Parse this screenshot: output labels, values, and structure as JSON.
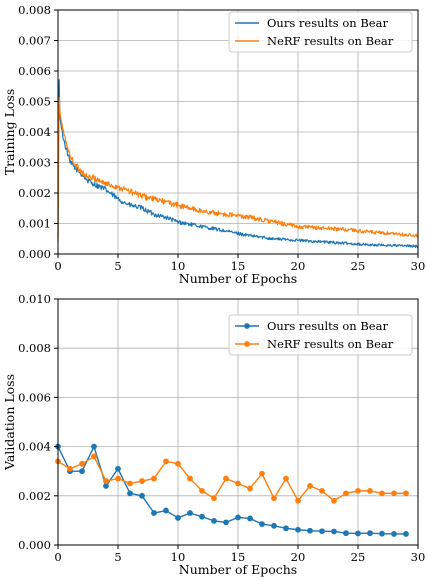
{
  "chart_data": [
    {
      "type": "line",
      "xlabel": "Number of Epochs",
      "ylabel": "Training Loss",
      "xlim": [
        0,
        30
      ],
      "ylim": [
        0,
        0.008
      ],
      "xticks": [
        "0",
        "5",
        "10",
        "15",
        "20",
        "25",
        "30"
      ],
      "yticks": [
        "0.000",
        "0.001",
        "0.002",
        "0.003",
        "0.004",
        "0.005",
        "0.006",
        "0.007",
        "0.008"
      ],
      "grid": true,
      "legend_position": "top-right",
      "series": [
        {
          "name": "Ours results on Bear",
          "color": "#1f77b4",
          "noise": 0.00017,
          "x": [
            0,
            0.08,
            0.15,
            0.3,
            0.5,
            0.8,
            1.0,
            1.5,
            2,
            2.5,
            3,
            4,
            5,
            6,
            7,
            8,
            9,
            10,
            12,
            14,
            16,
            18,
            20,
            22,
            24,
            26,
            28,
            30
          ],
          "y": [
            0.0005,
            0.0062,
            0.0045,
            0.0041,
            0.0037,
            0.0033,
            0.003,
            0.0028,
            0.0026,
            0.0024,
            0.0023,
            0.0021,
            0.0018,
            0.0016,
            0.0015,
            0.0013,
            0.0012,
            0.00105,
            0.0009,
            0.00075,
            0.0006,
            0.0005,
            0.00045,
            0.0004,
            0.00035,
            0.0003,
            0.00028,
            0.00025
          ]
        },
        {
          "name": "NeRF results on Bear",
          "color": "#ff7f0e",
          "noise": 0.00019,
          "x": [
            0,
            0.08,
            0.15,
            0.3,
            0.5,
            0.8,
            1.0,
            1.5,
            2,
            2.5,
            3,
            4,
            5,
            6,
            7,
            8,
            9,
            10,
            12,
            14,
            16,
            18,
            20,
            22,
            24,
            26,
            28,
            30
          ],
          "y": [
            0.0004,
            0.0053,
            0.0047,
            0.0043,
            0.0039,
            0.0035,
            0.0032,
            0.0029,
            0.0027,
            0.0025,
            0.0025,
            0.0023,
            0.0022,
            0.00205,
            0.0019,
            0.0018,
            0.0017,
            0.0016,
            0.0014,
            0.0013,
            0.0012,
            0.00105,
            0.0009,
            0.00085,
            0.0008,
            0.00072,
            0.00065,
            0.0006
          ]
        }
      ]
    },
    {
      "type": "line",
      "xlabel": "Number of Epochs",
      "ylabel": "Validation Loss",
      "xlim": [
        0,
        30
      ],
      "ylim": [
        0,
        0.01
      ],
      "xticks": [
        "0",
        "5",
        "10",
        "15",
        "20",
        "25",
        "30"
      ],
      "yticks": [
        "0.000",
        "0.002",
        "0.004",
        "0.006",
        "0.008",
        "0.010"
      ],
      "grid": true,
      "legend_position": "top-right",
      "markers": true,
      "series": [
        {
          "name": "Ours results on Bear",
          "color": "#1f77b4",
          "x": [
            0,
            1,
            2,
            3,
            4,
            5,
            6,
            7,
            8,
            9,
            10,
            11,
            12,
            13,
            14,
            15,
            16,
            17,
            18,
            19,
            20,
            21,
            22,
            23,
            24,
            25,
            26,
            27,
            28,
            29
          ],
          "y": [
            0.004,
            0.003,
            0.003,
            0.004,
            0.0024,
            0.0031,
            0.0021,
            0.002,
            0.0013,
            0.0014,
            0.0011,
            0.0013,
            0.00115,
            0.00098,
            0.00092,
            0.00112,
            0.00108,
            0.00085,
            0.00078,
            0.00068,
            0.00062,
            0.00058,
            0.00056,
            0.00055,
            0.00048,
            0.00047,
            0.00048,
            0.00046,
            0.00045,
            0.00045
          ]
        },
        {
          "name": "NeRF results on Bear",
          "color": "#ff7f0e",
          "x": [
            0,
            1,
            2,
            3,
            4,
            5,
            6,
            7,
            8,
            9,
            10,
            11,
            12,
            13,
            14,
            15,
            16,
            17,
            18,
            19,
            20,
            21,
            22,
            23,
            24,
            25,
            26,
            27,
            28,
            29
          ],
          "y": [
            0.0034,
            0.0031,
            0.0033,
            0.0036,
            0.0026,
            0.0027,
            0.0025,
            0.0026,
            0.0027,
            0.0034,
            0.0033,
            0.0027,
            0.0022,
            0.0019,
            0.0027,
            0.0025,
            0.0023,
            0.0029,
            0.0019,
            0.0027,
            0.0018,
            0.0024,
            0.0022,
            0.0018,
            0.0021,
            0.0022,
            0.0022,
            0.0021,
            0.0021,
            0.0021
          ]
        }
      ]
    }
  ]
}
